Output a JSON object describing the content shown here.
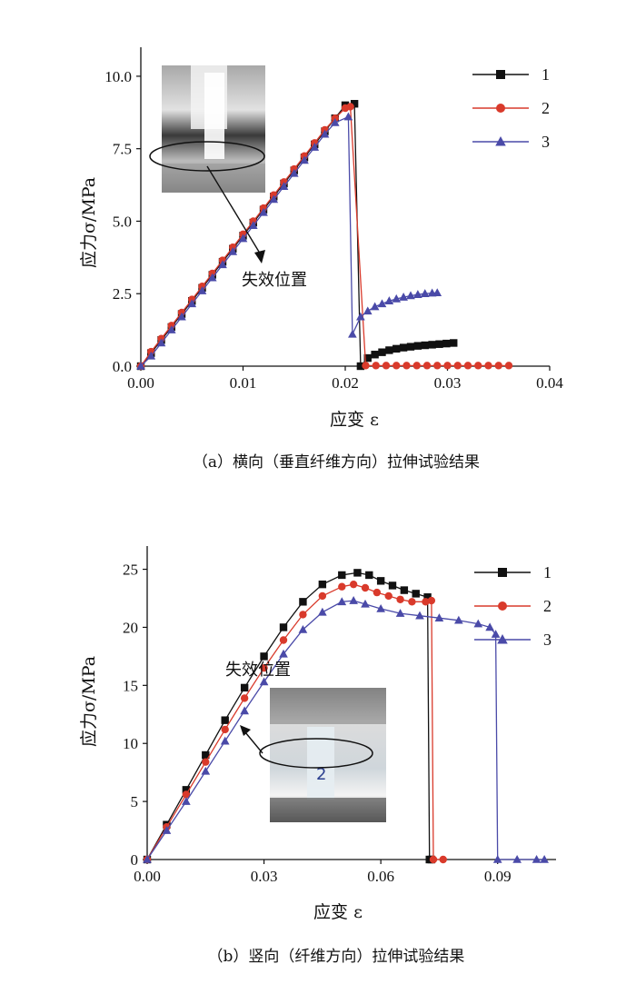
{
  "chart_data": [
    {
      "type": "line",
      "xlabel": "应变 ε",
      "ylabel": "应力σ/MPa",
      "xlim": [
        0.0,
        0.04
      ],
      "ylim": [
        0.0,
        11.0
      ],
      "xticks": [
        "0.00",
        "0.01",
        "0.02",
        "0.03",
        "0.04"
      ],
      "yticks": [
        "0.0",
        "2.5",
        "5.0",
        "7.5",
        "10.0"
      ],
      "caption": "（a）横向（垂直纤维方向）拉伸试验结果",
      "annotation": "失效位置",
      "legend_position": "top-right",
      "series": [
        {
          "name": "1",
          "color": "#111111",
          "marker": "square",
          "x": [
            0.0,
            0.001,
            0.002,
            0.003,
            0.004,
            0.005,
            0.006,
            0.007,
            0.008,
            0.009,
            0.01,
            0.011,
            0.012,
            0.013,
            0.014,
            0.015,
            0.016,
            0.017,
            0.018,
            0.019,
            0.02,
            0.0209,
            0.0215,
            0.0222,
            0.0229,
            0.0236,
            0.0243,
            0.025,
            0.0257,
            0.0264,
            0.0271,
            0.0278,
            0.0285,
            0.0292,
            0.0299,
            0.0306
          ],
          "y": [
            0.0,
            0.45,
            0.9,
            1.35,
            1.8,
            2.25,
            2.7,
            3.15,
            3.6,
            4.05,
            4.5,
            4.95,
            5.4,
            5.85,
            6.3,
            6.75,
            7.2,
            7.65,
            8.1,
            8.55,
            9.0,
            9.05,
            0.0,
            0.28,
            0.4,
            0.48,
            0.55,
            0.6,
            0.64,
            0.67,
            0.7,
            0.72,
            0.74,
            0.76,
            0.78,
            0.8
          ]
        },
        {
          "name": "2",
          "color": "#d93a2b",
          "marker": "circle",
          "x": [
            0.0,
            0.001,
            0.002,
            0.003,
            0.004,
            0.005,
            0.006,
            0.007,
            0.008,
            0.009,
            0.01,
            0.011,
            0.012,
            0.013,
            0.014,
            0.015,
            0.016,
            0.017,
            0.018,
            0.019,
            0.02,
            0.0205,
            0.022,
            0.023,
            0.024,
            0.025,
            0.026,
            0.027,
            0.028,
            0.029,
            0.03,
            0.031,
            0.032,
            0.033,
            0.034,
            0.035,
            0.036
          ],
          "y": [
            0.0,
            0.5,
            0.95,
            1.4,
            1.85,
            2.3,
            2.75,
            3.2,
            3.65,
            4.1,
            4.55,
            5.0,
            5.45,
            5.9,
            6.35,
            6.8,
            7.25,
            7.7,
            8.15,
            8.55,
            8.9,
            8.95,
            0.02,
            0.02,
            0.02,
            0.02,
            0.02,
            0.02,
            0.02,
            0.02,
            0.02,
            0.02,
            0.02,
            0.02,
            0.02,
            0.02,
            0.02
          ]
        },
        {
          "name": "3",
          "color": "#4a4aa8",
          "marker": "triangle",
          "x": [
            0.0,
            0.001,
            0.002,
            0.003,
            0.004,
            0.005,
            0.006,
            0.007,
            0.008,
            0.009,
            0.01,
            0.011,
            0.012,
            0.013,
            0.014,
            0.015,
            0.016,
            0.017,
            0.018,
            0.019,
            0.0203,
            0.0207,
            0.0215,
            0.0222,
            0.0229,
            0.0236,
            0.0243,
            0.025,
            0.0257,
            0.0264,
            0.0271,
            0.0278,
            0.0285,
            0.029
          ],
          "y": [
            0.0,
            0.35,
            0.8,
            1.25,
            1.7,
            2.15,
            2.6,
            3.05,
            3.5,
            3.95,
            4.4,
            4.85,
            5.3,
            5.75,
            6.2,
            6.65,
            7.1,
            7.55,
            8.0,
            8.4,
            8.6,
            1.1,
            1.7,
            1.9,
            2.05,
            2.15,
            2.25,
            2.32,
            2.38,
            2.43,
            2.47,
            2.5,
            2.52,
            2.53
          ]
        }
      ]
    },
    {
      "type": "line",
      "xlabel": "应变 ε",
      "ylabel": "应力σ/MPa",
      "xlim": [
        0.0,
        0.105
      ],
      "ylim": [
        0,
        27
      ],
      "xticks": [
        "0.00",
        "0.03",
        "0.06",
        "0.09"
      ],
      "yticks": [
        "0",
        "5",
        "10",
        "15",
        "20",
        "25"
      ],
      "caption": "（b）竖向（纤维方向）拉伸试验结果",
      "annotation": "失效位置",
      "legend_position": "top-right",
      "series": [
        {
          "name": "1",
          "color": "#111111",
          "marker": "square",
          "x": [
            0.0,
            0.005,
            0.01,
            0.015,
            0.02,
            0.025,
            0.03,
            0.035,
            0.04,
            0.045,
            0.05,
            0.054,
            0.057,
            0.06,
            0.063,
            0.066,
            0.069,
            0.072,
            0.0725,
            0.073
          ],
          "y": [
            0.0,
            3.0,
            6.0,
            9.0,
            12.0,
            14.8,
            17.5,
            20.0,
            22.2,
            23.7,
            24.5,
            24.7,
            24.5,
            24.0,
            23.6,
            23.2,
            22.9,
            22.6,
            0.0,
            0.0
          ]
        },
        {
          "name": "2",
          "color": "#d93a2b",
          "marker": "circle",
          "x": [
            0.0,
            0.005,
            0.01,
            0.015,
            0.02,
            0.025,
            0.03,
            0.035,
            0.04,
            0.045,
            0.05,
            0.053,
            0.056,
            0.059,
            0.062,
            0.065,
            0.068,
            0.0715,
            0.073,
            0.0735,
            0.076
          ],
          "y": [
            0.0,
            2.8,
            5.6,
            8.4,
            11.2,
            13.9,
            16.5,
            18.9,
            21.1,
            22.7,
            23.5,
            23.7,
            23.4,
            23.0,
            22.7,
            22.4,
            22.2,
            22.2,
            22.3,
            0.0,
            0.0
          ]
        },
        {
          "name": "3",
          "color": "#4a4aa8",
          "marker": "triangle",
          "x": [
            0.0,
            0.005,
            0.01,
            0.015,
            0.02,
            0.025,
            0.03,
            0.035,
            0.04,
            0.045,
            0.05,
            0.053,
            0.056,
            0.06,
            0.065,
            0.07,
            0.075,
            0.08,
            0.085,
            0.088,
            0.0895,
            0.09,
            0.095,
            0.1,
            0.102
          ],
          "y": [
            0.0,
            2.5,
            5.0,
            7.6,
            10.2,
            12.8,
            15.3,
            17.7,
            19.8,
            21.3,
            22.2,
            22.3,
            22.0,
            21.6,
            21.2,
            21.0,
            20.8,
            20.6,
            20.3,
            20.0,
            19.4,
            0.0,
            0.0,
            0.0,
            0.0
          ]
        }
      ]
    }
  ]
}
